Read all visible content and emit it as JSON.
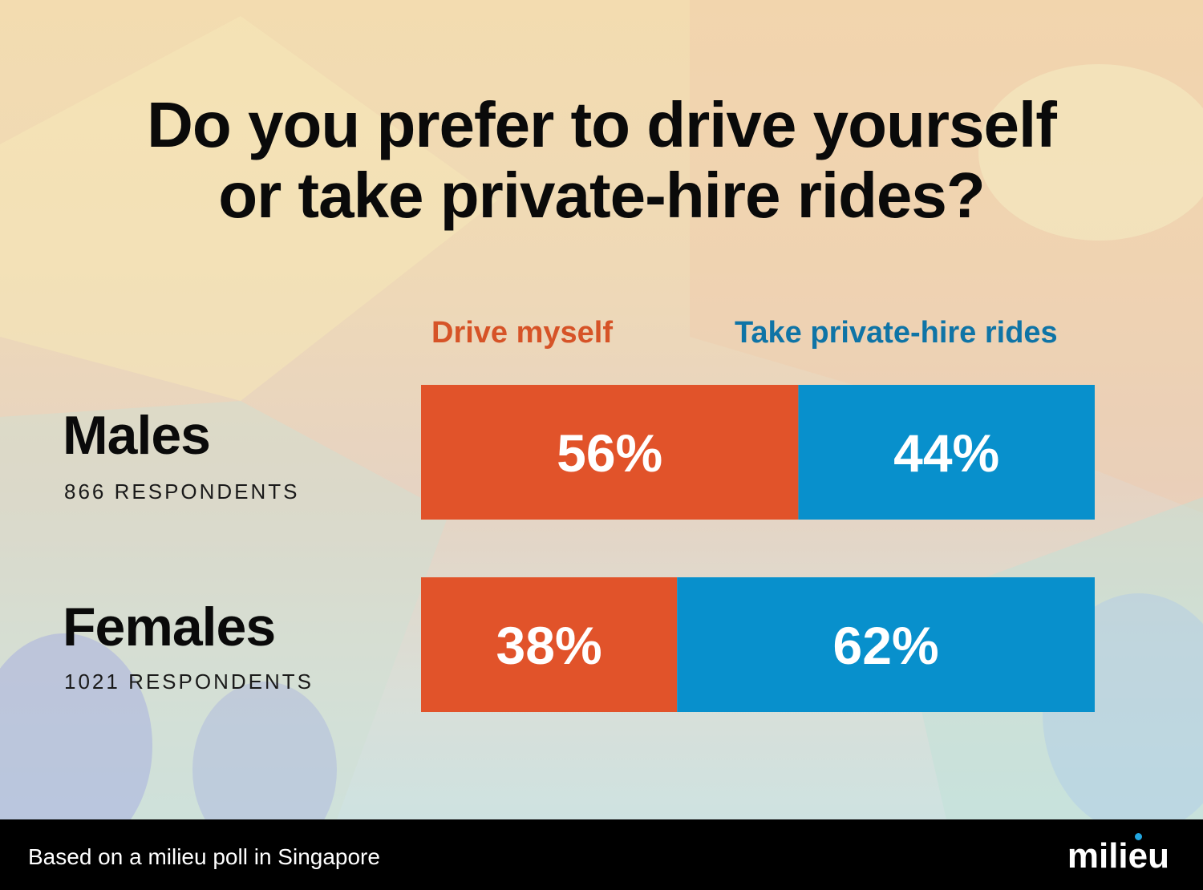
{
  "title_line1": "Do you prefer to drive yourself",
  "title_line2": "or take private-hire rides?",
  "footer": {
    "note": "Based on a milieu poll in Singapore",
    "logo": "milieu"
  },
  "colors": {
    "drive": "#e1532a",
    "ride": "#0890cc",
    "drive_text": "#d65327",
    "ride_text": "#0f74a6",
    "logo_dot": "#22a6e0"
  },
  "chart_data": {
    "type": "bar",
    "stacked": true,
    "orientation": "horizontal",
    "normalized_percent": true,
    "title": "Do you prefer to drive yourself or take private-hire rides?",
    "legend_position": "top",
    "categories": [
      "Males",
      "Females"
    ],
    "category_notes": [
      "866 RESPONDENTS",
      "1021 RESPONDENTS"
    ],
    "series": [
      {
        "name": "Drive myself",
        "values": [
          56,
          38
        ],
        "labels": [
          "56%",
          "38%"
        ]
      },
      {
        "name": "Take private-hire rides",
        "values": [
          44,
          62
        ],
        "labels": [
          "44%",
          "62%"
        ]
      }
    ]
  }
}
